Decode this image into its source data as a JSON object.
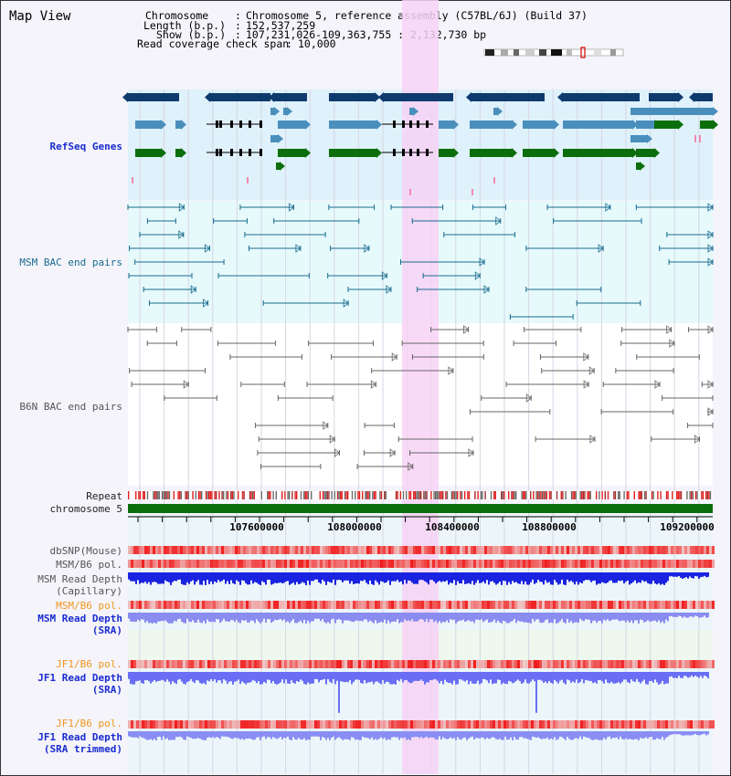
{
  "header": {
    "title": "Map View",
    "chromosome_label": "Chromosome",
    "chromosome_value": "Chromosome 5, reference assembly (C57BL/6J) (Build 37)",
    "length_label": "Length (b.p.)",
    "length_value": "152,537,259",
    "show_label": "Show (b.p.)",
    "show_value": "107,231,026-109,363,755 : 2,132,730 bp",
    "coverage_label": "Read coverage check span",
    "coverage_value": "10,000"
  },
  "tracks": {
    "refseq": "RefSeq Genes",
    "msm_bac": "MSM BAC end pairs",
    "b6n_bac": "B6N BAC end pairs",
    "repeat": "Repeat",
    "chromosome": "chromosome 5",
    "dbsnp": "dbSNP(Mouse)",
    "msm_b6_pol_1": "MSM/B6 pol.",
    "msm_depth_cap_1": "MSM Read Depth",
    "msm_depth_cap_2": "(Capillary)",
    "msm_b6_pol_2": "MSM/B6 pol.",
    "msm_depth_sra_1": "MSM Read Depth",
    "msm_depth_sra_2": "(SRA)",
    "jf1_b6_pol_1": "JF1/B6 pol.",
    "jf1_depth_sra_1": "JF1 Read Depth",
    "jf1_depth_sra_2": "(SRA)",
    "jf1_b6_pol_2": "JF1/B6 pol.",
    "jf1_depth_trim_1": "JF1 Read Depth",
    "jf1_depth_trim_2": "(SRA trimmed)"
  },
  "axis": {
    "ticks": [
      "107600000",
      "108000000",
      "108400000",
      "108800000",
      "109200000"
    ]
  },
  "colors": {
    "refseq_bg": "#dff1fa",
    "msm_bg": "#e6fafc",
    "highlight": "#f7d2f4",
    "gene_dark": "#0e3a6e",
    "gene_mid": "#4a8fbc",
    "gene_green": "#0b6e0b",
    "msm_line": "#1a6b8e",
    "b6n_line": "#666666",
    "chrom_green": "#0b6e0b",
    "depth_cap": "#1a23e0",
    "depth_sra": "#8a8cf0",
    "depth_jf1": "#6a6ef5"
  }
}
